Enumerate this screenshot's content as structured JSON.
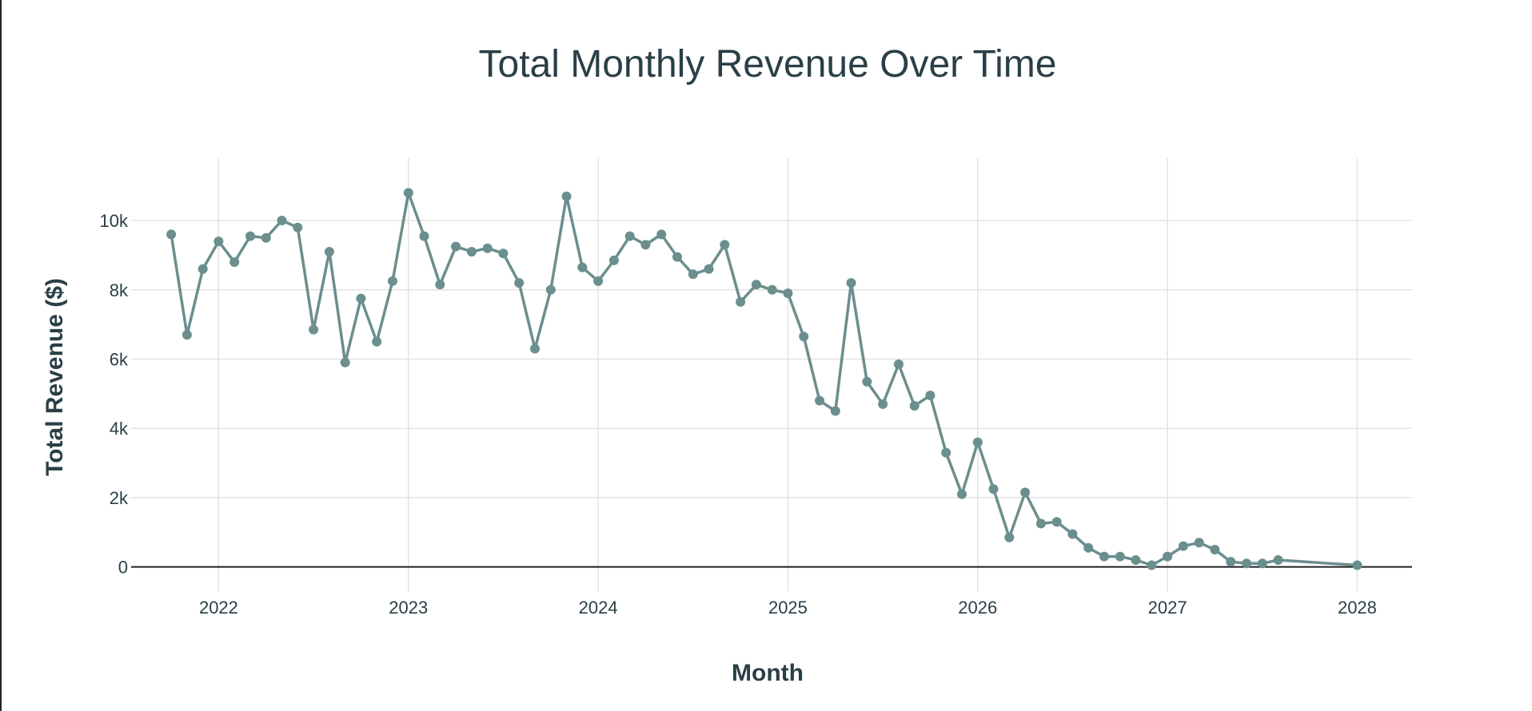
{
  "chart_data": {
    "type": "line",
    "title": "Total Monthly Revenue Over Time",
    "xlabel": "Month",
    "ylabel": "Total Revenue ($)",
    "x_ticks": [
      "2022",
      "2023",
      "2024",
      "2025",
      "2026",
      "2027",
      "2028"
    ],
    "y_ticks": [
      "0",
      "2k",
      "4k",
      "6k",
      "8k",
      "10k"
    ],
    "xlim": [
      "2021-07-15",
      "2028-04-15"
    ],
    "ylim": [
      -700,
      11800
    ],
    "grid": true,
    "legend": "none",
    "colors": {
      "line": "#6b8e8e",
      "grid": "#e3e3e3",
      "zero_line": "#222222",
      "text": "#2a3f47"
    },
    "series": [
      {
        "x": [
          "2021-10",
          "2021-11",
          "2021-12",
          "2022-01",
          "2022-02",
          "2022-03",
          "2022-04",
          "2022-05",
          "2022-06",
          "2022-07",
          "2022-08",
          "2022-09",
          "2022-10",
          "2022-11",
          "2022-12",
          "2023-01",
          "2023-02",
          "2023-03",
          "2023-04",
          "2023-05",
          "2023-06",
          "2023-07",
          "2023-08",
          "2023-09",
          "2023-10",
          "2023-11",
          "2023-12",
          "2024-01",
          "2024-02",
          "2024-03",
          "2024-04",
          "2024-05",
          "2024-06",
          "2024-07",
          "2024-08",
          "2024-09",
          "2024-10",
          "2024-11",
          "2024-12",
          "2025-01",
          "2025-02",
          "2025-03",
          "2025-04",
          "2025-05",
          "2025-06",
          "2025-07",
          "2025-08",
          "2025-09",
          "2025-10",
          "2025-11",
          "2025-12",
          "2026-01",
          "2026-02",
          "2026-03",
          "2026-04",
          "2026-05",
          "2026-06",
          "2026-07",
          "2026-08",
          "2026-09",
          "2026-10",
          "2026-11",
          "2026-12",
          "2027-01",
          "2027-02",
          "2027-03",
          "2027-04",
          "2027-05",
          "2027-06",
          "2027-07",
          "2027-08",
          "2028-01"
        ],
        "y": [
          9600,
          6700,
          8600,
          9400,
          8800,
          9550,
          9500,
          10000,
          9800,
          6850,
          9100,
          5900,
          7750,
          6500,
          8250,
          10800,
          9550,
          8150,
          9250,
          9100,
          9200,
          9050,
          8200,
          6300,
          8000,
          10700,
          8650,
          8250,
          8850,
          9550,
          9300,
          9600,
          8950,
          8450,
          8600,
          9300,
          7650,
          8150,
          8000,
          7900,
          6650,
          4800,
          4500,
          8200,
          5350,
          4700,
          5850,
          4650,
          4950,
          3300,
          2100,
          3600,
          2250,
          850,
          2150,
          1250,
          1300,
          950,
          550,
          300,
          300,
          200,
          50,
          300,
          600,
          700,
          500,
          150,
          100,
          100,
          200,
          50
        ]
      }
    ]
  }
}
